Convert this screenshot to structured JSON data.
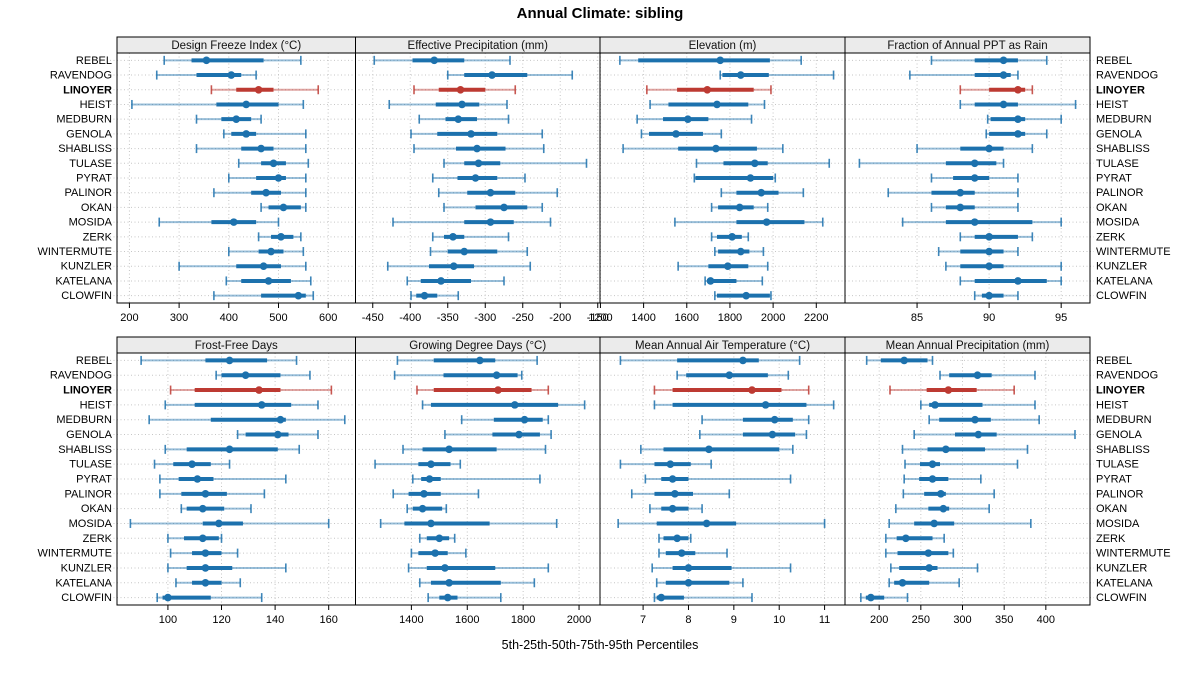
{
  "title": "Annual Climate: sibling",
  "axis_title": "5th-25th-50th-75th-95th Percentiles",
  "highlight_site": "LINOYER",
  "colors": {
    "series_blue": "#1c71ad",
    "highlight_red": "#bd3a32",
    "strip_bg": "#ebebeb",
    "grid": "#c6c6c6",
    "border": "#000000"
  },
  "sites": [
    "REBEL",
    "RAVENDOG",
    "LINOYER",
    "HEIST",
    "MEDBURN",
    "GENOLA",
    "SHABLISS",
    "TULASE",
    "PYRAT",
    "PALINOR",
    "OKAN",
    "MOSIDA",
    "ZERK",
    "WINTERMUTE",
    "KUNZLER",
    "KATELANA",
    "CLOWFIN"
  ],
  "chart_data": {
    "type": "scatter",
    "subtype": "trellis-percentile-interval-dotplot",
    "percentiles": [
      5,
      25,
      50,
      75,
      95
    ],
    "legend_note": "thick bar = 25th-75th, thin bar = 5th-95th, dot = median",
    "panels": [
      {
        "title": "Design Freeze Index (°C)",
        "row": "top",
        "col": 0,
        "xlim": [
          175,
          655
        ],
        "ticks": [
          200,
          300,
          400,
          500,
          600
        ],
        "values": {
          "REBEL": [
            270,
            325,
            355,
            470,
            545
          ],
          "RAVENDOG": [
            255,
            335,
            405,
            425,
            455
          ],
          "LINOYER": [
            365,
            415,
            460,
            490,
            580
          ],
          "HEIST": [
            205,
            375,
            435,
            500,
            550
          ],
          "MEDBURN": [
            335,
            385,
            415,
            445,
            465
          ],
          "GENOLA": [
            390,
            405,
            435,
            455,
            555
          ],
          "SHABLISS": [
            335,
            425,
            465,
            490,
            555
          ],
          "TULASE": [
            420,
            465,
            490,
            515,
            560
          ],
          "PYRAT": [
            400,
            455,
            500,
            515,
            555
          ],
          "PALINOR": [
            370,
            445,
            475,
            505,
            555
          ],
          "OKAN": [
            465,
            480,
            510,
            545,
            555
          ],
          "MOSIDA": [
            260,
            365,
            410,
            455,
            500
          ],
          "ZERK": [
            460,
            485,
            505,
            530,
            545
          ],
          "WINTERMUTE": [
            400,
            460,
            485,
            510,
            550
          ],
          "KUNZLER": [
            300,
            415,
            470,
            505,
            555
          ],
          "KATELANA": [
            395,
            425,
            480,
            525,
            565
          ],
          "CLOWFIN": [
            370,
            465,
            540,
            555,
            570
          ]
        }
      },
      {
        "title": "Effective Precipitation (mm)",
        "row": "top",
        "col": 1,
        "xlim": [
          -473,
          -147
        ],
        "ticks": [
          -450,
          -400,
          -350,
          -300,
          -250,
          -200,
          -150
        ],
        "values": {
          "REBEL": [
            -448,
            -397,
            -368,
            -328,
            -267
          ],
          "RAVENDOG": [
            -350,
            -328,
            -291,
            -244,
            -184
          ],
          "LINOYER": [
            -395,
            -362,
            -333,
            -300,
            -260
          ],
          "HEIST": [
            -428,
            -366,
            -331,
            -308,
            -271
          ],
          "MEDBURN": [
            -388,
            -353,
            -336,
            -311,
            -269
          ],
          "GENOLA": [
            -399,
            -364,
            -319,
            -284,
            -224
          ],
          "SHABLISS": [
            -395,
            -339,
            -311,
            -273,
            -222
          ],
          "TULASE": [
            -355,
            -328,
            -309,
            -280,
            -165
          ],
          "PYRAT": [
            -370,
            -337,
            -313,
            -284,
            -247
          ],
          "PALINOR": [
            -362,
            -324,
            -293,
            -260,
            -204
          ],
          "OKAN": [
            -355,
            -313,
            -275,
            -244,
            -224
          ],
          "MOSIDA": [
            -423,
            -328,
            -293,
            -262,
            -213
          ],
          "ZERK": [
            -370,
            -355,
            -343,
            -328,
            -269
          ],
          "WINTERMUTE": [
            -373,
            -350,
            -328,
            -284,
            -244
          ],
          "KUNZLER": [
            -430,
            -375,
            -342,
            -315,
            -240
          ],
          "KATELANA": [
            -404,
            -386,
            -359,
            -319,
            -275
          ],
          "CLOWFIN": [
            -399,
            -392,
            -381,
            -364,
            -336
          ]
        }
      },
      {
        "title": "Elevation (m)",
        "row": "top",
        "col": 2,
        "xlim": [
          1198,
          2333
        ],
        "ticks": [
          1200,
          1400,
          1600,
          1800,
          2000,
          2200
        ],
        "values": {
          "REBEL": [
            1290,
            1375,
            1755,
            1985,
            2130
          ],
          "RAVENDOG": [
            1755,
            1765,
            1850,
            1980,
            2280
          ],
          "LINOYER": [
            1415,
            1555,
            1695,
            1910,
            1990
          ],
          "HEIST": [
            1430,
            1515,
            1740,
            1885,
            1960
          ],
          "MEDBURN": [
            1370,
            1490,
            1605,
            1700,
            1900
          ],
          "GENOLA": [
            1390,
            1425,
            1550,
            1675,
            1760
          ],
          "SHABLISS": [
            1305,
            1560,
            1735,
            1925,
            2045
          ],
          "TULASE": [
            1645,
            1770,
            1915,
            1975,
            2260
          ],
          "PYRAT": [
            1635,
            1640,
            1895,
            2000,
            2010
          ],
          "PALINOR": [
            1760,
            1830,
            1945,
            2025,
            2140
          ],
          "OKAN": [
            1715,
            1745,
            1845,
            1910,
            1975
          ],
          "MOSIDA": [
            1545,
            1830,
            1970,
            2145,
            2230
          ],
          "ZERK": [
            1715,
            1740,
            1810,
            1855,
            1885
          ],
          "WINTERMUTE": [
            1730,
            1745,
            1850,
            1890,
            1955
          ],
          "KUNZLER": [
            1560,
            1700,
            1790,
            1885,
            1975
          ],
          "KATELANA": [
            1685,
            1695,
            1710,
            1830,
            1950
          ],
          "CLOWFIN": [
            1730,
            1740,
            1875,
            1985,
            1990
          ]
        }
      },
      {
        "title": "Fraction of Annual PPT as Rain",
        "row": "top",
        "col": 3,
        "xlim": [
          80,
          97
        ],
        "ticks": [
          85,
          90,
          95
        ],
        "values": {
          "REBEL": [
            86,
            89,
            91,
            92,
            94
          ],
          "RAVENDOG": [
            84.5,
            89,
            91,
            91.5,
            92
          ],
          "LINOYER": [
            88,
            90,
            92,
            92.5,
            93
          ],
          "HEIST": [
            88,
            89,
            91,
            92,
            96
          ],
          "MEDBURN": [
            89.9,
            90.1,
            92,
            92.5,
            95
          ],
          "GENOLA": [
            89.8,
            90,
            92,
            92.5,
            94
          ],
          "SHABLISS": [
            85,
            88,
            90,
            91,
            93
          ],
          "TULASE": [
            81,
            87,
            89,
            90.5,
            91
          ],
          "PYRAT": [
            86,
            87.5,
            89,
            90,
            92
          ],
          "PALINOR": [
            83,
            86,
            88,
            89,
            92
          ],
          "OKAN": [
            86,
            87,
            88,
            89,
            92
          ],
          "MOSIDA": [
            84,
            87,
            89,
            93,
            95
          ],
          "ZERK": [
            88,
            89,
            90,
            92,
            93
          ],
          "WINTERMUTE": [
            86.5,
            88,
            90,
            91,
            92
          ],
          "KUNZLER": [
            87,
            88,
            90,
            91,
            95
          ],
          "KATELANA": [
            88,
            89,
            92,
            94,
            95
          ],
          "CLOWFIN": [
            89,
            89.5,
            90,
            91,
            92
          ]
        }
      },
      {
        "title": "Frost-Free Days",
        "row": "bottom",
        "col": 0,
        "xlim": [
          81,
          170
        ],
        "ticks": [
          100,
          120,
          140,
          160
        ],
        "values": {
          "REBEL": [
            90,
            114,
            123,
            137,
            148
          ],
          "RAVENDOG": [
            118,
            120,
            129,
            142,
            153
          ],
          "LINOYER": [
            101,
            110,
            134,
            142,
            161
          ],
          "HEIST": [
            99,
            110,
            135,
            146,
            156
          ],
          "MEDBURN": [
            93,
            116,
            142,
            144,
            166
          ],
          "GENOLA": [
            126,
            129,
            141,
            145,
            156
          ],
          "SHABLISS": [
            99,
            107,
            123,
            141,
            149
          ],
          "TULASE": [
            95,
            102,
            109,
            116,
            123
          ],
          "PYRAT": [
            97,
            104,
            111,
            117,
            144
          ],
          "PALINOR": [
            97,
            105,
            114,
            122,
            136
          ],
          "OKAN": [
            105,
            107,
            113,
            121,
            131
          ],
          "MOSIDA": [
            86,
            113,
            119,
            128,
            160
          ],
          "ZERK": [
            100,
            106,
            113,
            119,
            120
          ],
          "WINTERMUTE": [
            101,
            109,
            114,
            120,
            126
          ],
          "KUNZLER": [
            100,
            107,
            114,
            124,
            144
          ],
          "KATELANA": [
            103,
            109,
            114,
            120,
            127
          ],
          "CLOWFIN": [
            96,
            98,
            100,
            116,
            135
          ]
        }
      },
      {
        "title": "Growing Degree Days (°C)",
        "row": "bottom",
        "col": 1,
        "xlim": [
          1200,
          2075
        ],
        "ticks": [
          1400,
          1600,
          1800,
          2000
        ],
        "values": {
          "REBEL": [
            1350,
            1480,
            1645,
            1700,
            1850
          ],
          "RAVENDOG": [
            1340,
            1515,
            1705,
            1780,
            1795
          ],
          "LINOYER": [
            1420,
            1480,
            1710,
            1830,
            1890
          ],
          "HEIST": [
            1440,
            1470,
            1770,
            1925,
            2020
          ],
          "MEDBURN": [
            1580,
            1695,
            1805,
            1870,
            1890
          ],
          "GENOLA": [
            1520,
            1690,
            1785,
            1860,
            1900
          ],
          "SHABLISS": [
            1370,
            1440,
            1535,
            1705,
            1880
          ],
          "TULASE": [
            1270,
            1425,
            1470,
            1540,
            1575
          ],
          "PYRAT": [
            1405,
            1435,
            1465,
            1505,
            1860
          ],
          "PALINOR": [
            1335,
            1390,
            1445,
            1505,
            1640
          ],
          "OKAN": [
            1385,
            1405,
            1440,
            1510,
            1525
          ],
          "MOSIDA": [
            1290,
            1375,
            1470,
            1680,
            1920
          ],
          "ZERK": [
            1430,
            1455,
            1500,
            1535,
            1555
          ],
          "WINTERMUTE": [
            1400,
            1425,
            1485,
            1530,
            1595
          ],
          "KUNZLER": [
            1390,
            1455,
            1520,
            1700,
            1890
          ],
          "KATELANA": [
            1430,
            1470,
            1535,
            1720,
            1840
          ],
          "CLOWFIN": [
            1460,
            1500,
            1530,
            1565,
            1720
          ]
        }
      },
      {
        "title": "Mean Annual Air Temperature (°C)",
        "row": "bottom",
        "col": 2,
        "xlim": [
          6.05,
          11.45
        ],
        "ticks": [
          7,
          8,
          9,
          10,
          11
        ],
        "values": {
          "REBEL": [
            6.5,
            7.75,
            9.2,
            9.55,
            10.45
          ],
          "RAVENDOG": [
            7.75,
            7.95,
            8.9,
            9.75,
            10.2
          ],
          "LINOYER": [
            7.25,
            7.65,
            9.4,
            10.05,
            10.65
          ],
          "HEIST": [
            7.25,
            7.65,
            9.7,
            10.6,
            11.2
          ],
          "MEDBURN": [
            8.3,
            9.2,
            9.9,
            10.3,
            10.65
          ],
          "GENOLA": [
            8.25,
            9.2,
            9.85,
            10.35,
            10.6
          ],
          "SHABLISS": [
            6.95,
            7.45,
            8.45,
            10.0,
            10.3
          ],
          "TULASE": [
            6.5,
            7.25,
            7.6,
            8.05,
            8.5
          ],
          "PYRAT": [
            7.05,
            7.4,
            7.65,
            8.0,
            10.25
          ],
          "PALINOR": [
            6.75,
            7.25,
            7.7,
            8.1,
            8.9
          ],
          "OKAN": [
            7.15,
            7.4,
            7.65,
            8.0,
            8.3
          ],
          "MOSIDA": [
            6.45,
            7.3,
            8.4,
            9.05,
            11.0
          ],
          "ZERK": [
            7.35,
            7.45,
            7.75,
            8.0,
            8.05
          ],
          "WINTERMUTE": [
            7.35,
            7.5,
            7.85,
            8.15,
            8.85
          ],
          "KUNZLER": [
            7.2,
            7.65,
            8.0,
            8.95,
            10.25
          ],
          "KATELANA": [
            7.3,
            7.5,
            8.0,
            8.9,
            9.2
          ],
          "CLOWFIN": [
            7.25,
            7.3,
            7.4,
            7.9,
            9.4
          ]
        }
      },
      {
        "title": "Mean Annual Precipitation (mm)",
        "row": "bottom",
        "col": 3,
        "xlim": [
          159,
          453
        ],
        "ticks": [
          200,
          250,
          300,
          350,
          400
        ],
        "values": {
          "REBEL": [
            185,
            202,
            230,
            258,
            264
          ],
          "RAVENDOG": [
            273,
            284,
            318,
            335,
            387
          ],
          "LINOYER": [
            213,
            257,
            283,
            317,
            362
          ],
          "HEIST": [
            250,
            260,
            267,
            324,
            387
          ],
          "MEDBURN": [
            260,
            272,
            315,
            334,
            392
          ],
          "GENOLA": [
            242,
            291,
            319,
            341,
            435
          ],
          "SHABLISS": [
            228,
            258,
            280,
            327,
            378
          ],
          "TULASE": [
            231,
            249,
            264,
            273,
            366
          ],
          "PYRAT": [
            230,
            248,
            264,
            283,
            322
          ],
          "PALINOR": [
            229,
            254,
            274,
            280,
            338
          ],
          "OKAN": [
            220,
            259,
            277,
            284,
            332
          ],
          "MOSIDA": [
            212,
            242,
            266,
            290,
            382
          ],
          "ZERK": [
            208,
            221,
            232,
            264,
            278
          ],
          "WINTERMUTE": [
            208,
            222,
            259,
            283,
            289
          ],
          "KUNZLER": [
            214,
            224,
            260,
            270,
            318
          ],
          "KATELANA": [
            212,
            218,
            228,
            260,
            296
          ],
          "CLOWFIN": [
            178,
            184,
            190,
            206,
            234
          ]
        }
      }
    ]
  }
}
